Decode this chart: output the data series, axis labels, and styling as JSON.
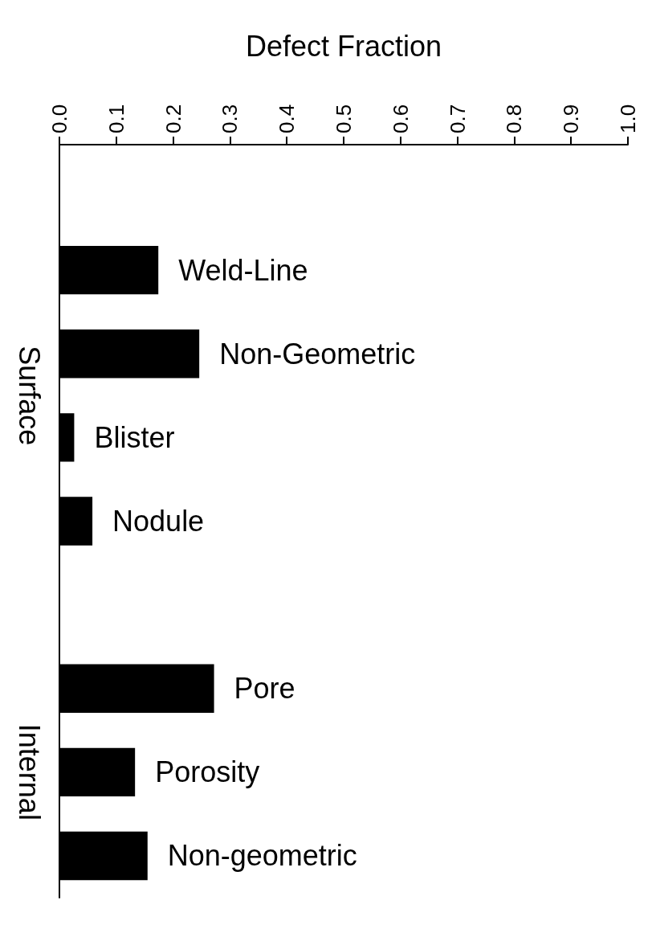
{
  "chart_data": {
    "type": "bar",
    "orientation": "horizontal",
    "xlabel": "Defect Fraction",
    "categories": [
      null,
      "Weld-Line",
      "Non-Geometric",
      "Blister",
      "Nodule",
      null,
      "Pore",
      "Porosity",
      "Non-geometric"
    ],
    "values": [
      null,
      0.174,
      0.246,
      0.026,
      0.058,
      null,
      0.272,
      0.133,
      0.155
    ],
    "color": "#000000",
    "xlim": [
      0,
      1
    ],
    "xticks": [
      {
        "value": 0,
        "label": "0.0"
      },
      0.1,
      0.2,
      0.3,
      0.4,
      0.5,
      0.6,
      0.7,
      0.8,
      0.9,
      {
        "value": 1,
        "label": "1.0"
      }
    ],
    "annotations": [
      "Surface",
      "Internal"
    ],
    "grid": false
  }
}
